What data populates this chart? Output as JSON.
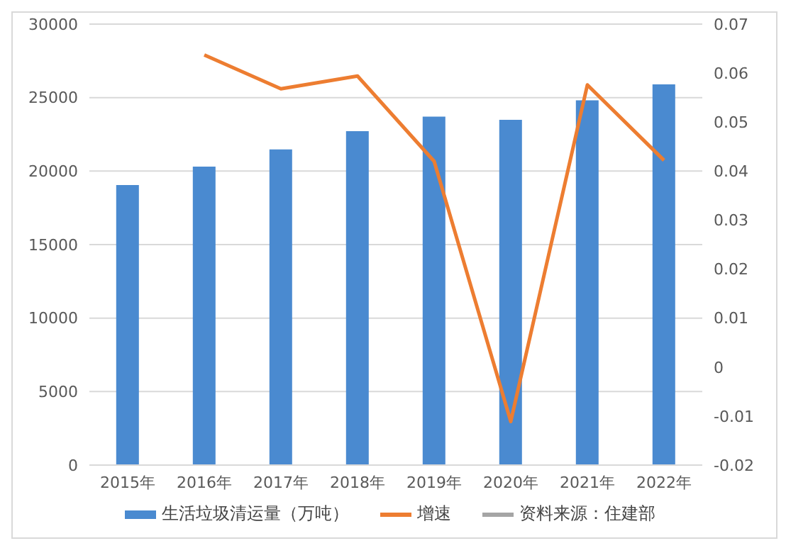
{
  "chart_data": {
    "type": "bar",
    "categories": [
      "2015年",
      "2016年",
      "2017年",
      "2018年",
      "2019年",
      "2020年",
      "2021年",
      "2022年"
    ],
    "series": [
      {
        "name": "生活垃圾清运量（万吨）",
        "color": "#4a8ad0",
        "values": [
          19050,
          20310,
          21470,
          22720,
          23710,
          23490,
          24810,
          25900
        ]
      },
      {
        "name": "增速",
        "type": "line",
        "axis": "y2",
        "color": "#ed7d31",
        "values": [
          null,
          0.0637,
          0.0568,
          0.0594,
          0.042,
          -0.0111,
          0.0576,
          0.0422
        ]
      }
    ],
    "ylim": [
      0,
      30000
    ],
    "yticks": [
      0,
      5000,
      10000,
      15000,
      20000,
      25000,
      30000
    ],
    "y2lim": [
      -0.02,
      0.07
    ],
    "y2ticks": [
      -0.02,
      -0.01,
      0,
      0.01,
      0.02,
      0.03,
      0.04,
      0.05,
      0.06,
      0.07
    ],
    "grid": "y",
    "legend": "bottom",
    "marker": "none",
    "annotations": [
      "资料来源：住建部"
    ]
  }
}
